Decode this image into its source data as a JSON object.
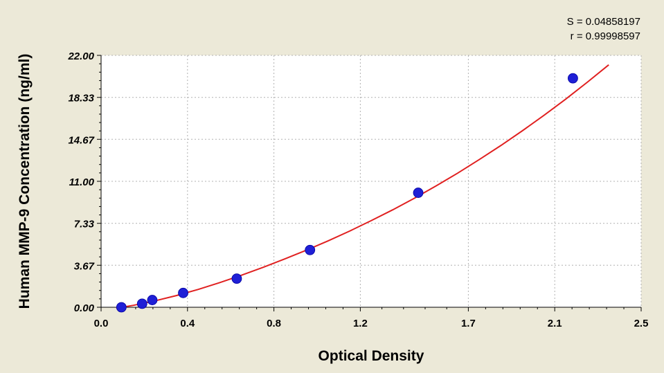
{
  "stats": {
    "s_label": "S = 0.04858197",
    "r_label": "r = 0.99998597"
  },
  "chart_data": {
    "type": "scatter",
    "xlabel": "Optical Density",
    "ylabel": "Human MMP-9 Concentration (ng/ml)",
    "xlim": [
      0.0,
      2.5
    ],
    "ylim": [
      0.0,
      22.0
    ],
    "x_ticks": [
      0.0,
      0.4,
      0.8,
      1.2,
      1.7,
      2.1,
      2.5
    ],
    "x_tick_labels": [
      "0.0",
      "0.4",
      "0.8",
      "1.2",
      "1.7",
      "2.1",
      "2.5"
    ],
    "y_ticks": [
      0.0,
      3.67,
      7.33,
      11.0,
      14.67,
      18.33,
      22.0
    ],
    "y_tick_labels": [
      "0.00",
      "3.67",
      "7.33",
      "11.00",
      "14.67",
      "18.33",
      "22.00"
    ],
    "grid": true,
    "colors": {
      "background": "#ECE9D8",
      "plot_area": "#FFFFFF",
      "points": "#1F1FD6",
      "curve": "#E02020",
      "grid": "#B0B0B0"
    },
    "points": {
      "x": [
        0.094,
        0.19,
        0.237,
        0.38,
        0.628,
        0.967,
        1.468,
        2.184
      ],
      "y": [
        0.0,
        0.31,
        0.63,
        1.25,
        2.5,
        5.0,
        10.0,
        20.0
      ]
    },
    "fit_curve": {
      "x": [
        0.07,
        0.15,
        0.25,
        0.35,
        0.45,
        0.55,
        0.65,
        0.75,
        0.85,
        0.95,
        1.05,
        1.15,
        1.25,
        1.35,
        1.45,
        1.55,
        1.65,
        1.75,
        1.85,
        1.95,
        2.05,
        2.15,
        2.25,
        2.35
      ],
      "y": [
        -0.08,
        0.17,
        0.56,
        1.03,
        1.56,
        2.16,
        2.8,
        3.49,
        4.22,
        4.98,
        5.79,
        6.65,
        7.56,
        8.51,
        9.52,
        10.59,
        11.71,
        12.89,
        14.12,
        15.41,
        16.76,
        18.17,
        19.64,
        21.17
      ]
    }
  }
}
